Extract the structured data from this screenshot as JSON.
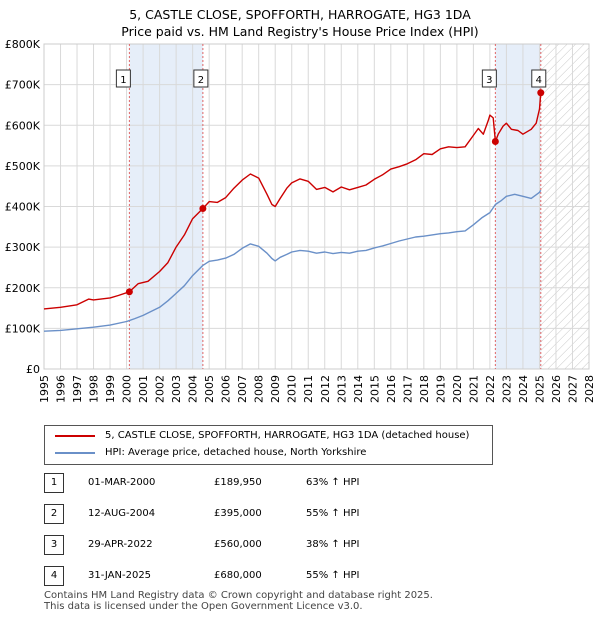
{
  "chart_data": {
    "type": "line",
    "title": "5, CASTLE CLOSE, SPOFFORTH, HARROGATE, HG3 1DA",
    "subtitle": "Price paid vs. HM Land Registry's House Price Index (HPI)",
    "xlim": [
      1995,
      2028
    ],
    "ylim": [
      0,
      800000
    ],
    "x_ticks": [
      1995,
      1996,
      1997,
      1998,
      1999,
      2000,
      2001,
      2002,
      2003,
      2004,
      2005,
      2006,
      2007,
      2008,
      2009,
      2010,
      2011,
      2012,
      2013,
      2014,
      2015,
      2016,
      2017,
      2018,
      2019,
      2020,
      2021,
      2022,
      2023,
      2024,
      2025,
      2026,
      2027,
      2028
    ],
    "y_ticks": [
      {
        "value": 0,
        "label": "£0"
      },
      {
        "value": 100000,
        "label": "£100K"
      },
      {
        "value": 200000,
        "label": "£200K"
      },
      {
        "value": 300000,
        "label": "£300K"
      },
      {
        "value": 400000,
        "label": "£400K"
      },
      {
        "value": 500000,
        "label": "£500K"
      },
      {
        "value": 600000,
        "label": "£600K"
      },
      {
        "value": 700000,
        "label": "£700K"
      },
      {
        "value": 800000,
        "label": "£800K"
      }
    ],
    "grid": true,
    "shaded_ranges": [
      [
        2000.17,
        2004.62
      ],
      [
        2022.33,
        2025.08
      ]
    ],
    "hatched_range": [
      2025.08,
      2028
    ],
    "series": [
      {
        "name": "5, CASTLE CLOSE, SPOFFORTH, HARROGATE, HG3 1DA (detached house)",
        "color": "#cc0000",
        "x": [
          1995,
          1996,
          1997,
          1997.7,
          1998,
          1999,
          1999.5,
          2000.17,
          2000.7,
          2001.3,
          2002,
          2002.5,
          2003,
          2003.5,
          2004,
          2004.62,
          2005,
          2005.5,
          2006,
          2006.5,
          2007,
          2007.5,
          2008,
          2008.5,
          2008.8,
          2009,
          2009.3,
          2009.7,
          2010,
          2010.5,
          2011,
          2011.5,
          2012,
          2012.5,
          2013,
          2013.5,
          2014,
          2014.5,
          2015,
          2015.5,
          2016,
          2016.5,
          2017,
          2017.5,
          2018,
          2018.5,
          2019,
          2019.5,
          2020,
          2020.5,
          2021,
          2021.3,
          2021.6,
          2021.9,
          2022,
          2022.2,
          2022.33,
          2022.5,
          2022.8,
          2023,
          2023.3,
          2023.7,
          2024,
          2024.5,
          2024.8,
          2025,
          2025.08
        ],
        "values": [
          148000,
          152000,
          158000,
          172000,
          170000,
          175000,
          181000,
          189950,
          210000,
          216000,
          240000,
          262000,
          300000,
          330000,
          370000,
          395000,
          412000,
          410000,
          422000,
          445000,
          465000,
          480000,
          470000,
          430000,
          405000,
          400000,
          420000,
          445000,
          458000,
          468000,
          462000,
          442000,
          447000,
          436000,
          448000,
          441000,
          447000,
          453000,
          467000,
          478000,
          492000,
          498000,
          505000,
          515000,
          530000,
          528000,
          542000,
          547000,
          545000,
          547000,
          575000,
          592000,
          578000,
          612000,
          625000,
          618000,
          560000,
          578000,
          598000,
          605000,
          590000,
          587000,
          578000,
          590000,
          605000,
          640000,
          680000
        ]
      },
      {
        "name": "HPI: Average price, detached house, North Yorkshire",
        "color": "#6a90c8",
        "x": [
          1995,
          1996,
          1997,
          1998,
          1999,
          2000,
          2000.5,
          2001,
          2002,
          2002.5,
          2003,
          2003.5,
          2004,
          2004.62,
          2005,
          2005.5,
          2006,
          2006.5,
          2007,
          2007.5,
          2008,
          2008.5,
          2008.8,
          2009,
          2009.3,
          2009.7,
          2010,
          2010.5,
          2011,
          2011.5,
          2012,
          2012.5,
          2013,
          2013.5,
          2014,
          2014.5,
          2015,
          2015.5,
          2016,
          2016.5,
          2017,
          2017.5,
          2018,
          2018.5,
          2019,
          2019.5,
          2020,
          2020.5,
          2021,
          2021.5,
          2022,
          2022.33,
          2022.7,
          2023,
          2023.5,
          2024,
          2024.5,
          2025,
          2025.08
        ],
        "values": [
          93000,
          95000,
          99000,
          103000,
          108000,
          117000,
          124000,
          132000,
          152000,
          168000,
          186000,
          205000,
          230000,
          255000,
          265000,
          268000,
          273000,
          282000,
          297000,
          308000,
          302000,
          285000,
          272000,
          266000,
          275000,
          282000,
          288000,
          292000,
          290000,
          285000,
          288000,
          284000,
          287000,
          285000,
          290000,
          292000,
          298000,
          303000,
          309000,
          315000,
          320000,
          325000,
          327000,
          330000,
          333000,
          335000,
          338000,
          340000,
          355000,
          372000,
          385000,
          405000,
          415000,
          425000,
          430000,
          425000,
          420000,
          435000,
          440000
        ]
      }
    ],
    "markers": [
      {
        "label": "1",
        "x": 2000.17,
        "y": 189950
      },
      {
        "label": "2",
        "x": 2004.62,
        "y": 395000
      },
      {
        "label": "3",
        "x": 2022.33,
        "y": 560000
      },
      {
        "label": "4",
        "x": 2025.08,
        "y": 680000
      }
    ]
  },
  "legend": {
    "property_label": "5, CASTLE CLOSE, SPOFFORTH, HARROGATE, HG3 1DA (detached house)",
    "hpi_label": "HPI: Average price, detached house, North Yorkshire",
    "property_color": "#cc0000",
    "hpi_color": "#6a90c8"
  },
  "sales": [
    {
      "num": "1",
      "date": "01-MAR-2000",
      "price": "£189,950",
      "hpi": "63% ↑ HPI"
    },
    {
      "num": "2",
      "date": "12-AUG-2004",
      "price": "£395,000",
      "hpi": "55% ↑ HPI"
    },
    {
      "num": "3",
      "date": "29-APR-2022",
      "price": "£560,000",
      "hpi": "38% ↑ HPI"
    },
    {
      "num": "4",
      "date": "31-JAN-2025",
      "price": "£680,000",
      "hpi": "55% ↑ HPI"
    }
  ],
  "footer": {
    "line1": "Contains HM Land Registry data © Crown copyright and database right 2025.",
    "line2": "This data is licensed under the Open Government Licence v3.0."
  }
}
